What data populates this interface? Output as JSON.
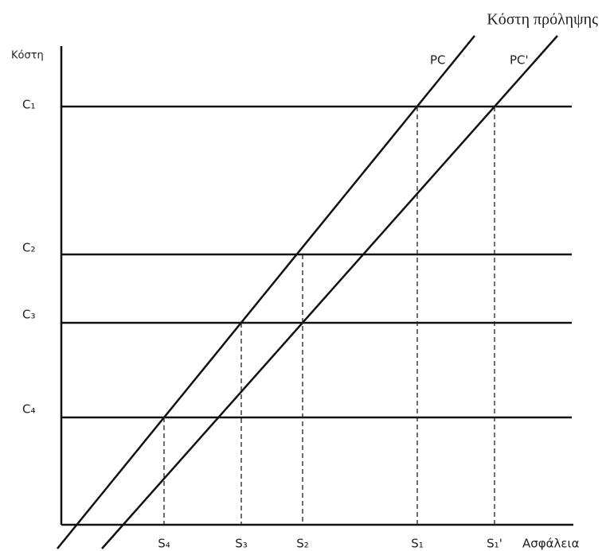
{
  "caption": "Κόστη πρόληψης",
  "axes": {
    "y_label": "Κόστη",
    "x_label": "Ασφάλεια"
  },
  "cost_levels": [
    "C₁",
    "C₂",
    "C₃",
    "C₄"
  ],
  "security_levels": [
    "S₄",
    "S₃",
    "S₂",
    "S₁",
    "S₁'"
  ],
  "curves": [
    "PC",
    "PC'"
  ]
}
